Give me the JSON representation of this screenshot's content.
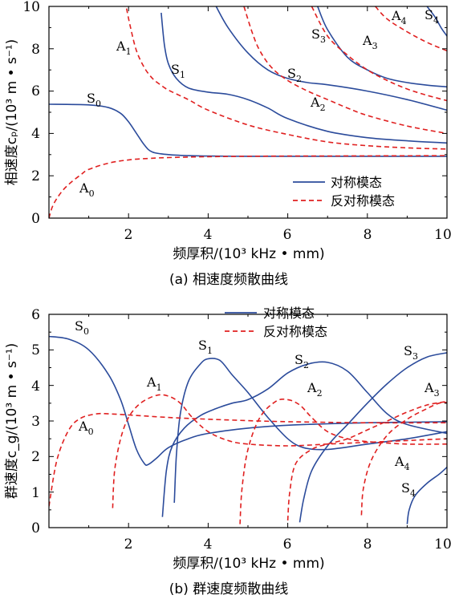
{
  "chart_data": [
    {
      "type": "line",
      "caption": "(a)   相速度频散曲线",
      "xlabel": "频厚积/(10³ kHz • mm)",
      "ylabel": "相速度cₚ/(10³ m • s⁻¹)",
      "xlim": [
        0,
        10
      ],
      "ylim": [
        0,
        10
      ],
      "xticks": [
        "2",
        "4",
        "6",
        "8",
        "10"
      ],
      "yticks": [
        "0",
        "2",
        "4",
        "6",
        "8",
        "10"
      ],
      "legend": {
        "position": "bottom-right",
        "entries": [
          "对称模态",
          "反对称模态"
        ]
      },
      "colors": {
        "symmetric": "#2b4b9b",
        "antisymmetric": "#e02020"
      },
      "series": [
        {
          "name": "S0",
          "group": "symmetric",
          "label": "S0",
          "x": [
            0,
            1,
            1.5,
            1.8,
            2.0,
            2.2,
            2.4,
            2.6,
            3.0,
            3.5,
            4,
            5,
            6,
            7,
            8,
            10
          ],
          "y": [
            5.38,
            5.35,
            5.22,
            4.95,
            4.55,
            4.0,
            3.45,
            3.12,
            3.0,
            2.95,
            2.93,
            2.92,
            2.92,
            2.92,
            2.92,
            2.92
          ]
        },
        {
          "name": "S1",
          "group": "symmetric",
          "label": "S1",
          "x": [
            2.82,
            2.9,
            3.0,
            3.2,
            3.5,
            4,
            4.5,
            5,
            5.5,
            6,
            7,
            8,
            9,
            10
          ],
          "y": [
            9.7,
            8.2,
            7.3,
            6.6,
            6.15,
            5.95,
            5.85,
            5.6,
            5.2,
            4.7,
            4.1,
            3.8,
            3.65,
            3.55
          ]
        },
        {
          "name": "S2",
          "group": "symmetric",
          "label": "S2",
          "x": [
            4.2,
            4.5,
            5,
            5.5,
            6,
            6.5,
            7,
            8,
            9,
            10
          ],
          "y": [
            10,
            9.0,
            7.8,
            7.0,
            6.6,
            6.4,
            6.3,
            6.0,
            5.6,
            5.1
          ]
        },
        {
          "name": "S3",
          "group": "symmetric",
          "label": "S3",
          "x": [
            6.75,
            7,
            7.5,
            8,
            8.5,
            9,
            9.5,
            10
          ],
          "y": [
            10,
            8.9,
            7.6,
            7.0,
            6.6,
            6.4,
            6.28,
            6.2
          ]
        },
        {
          "name": "S4",
          "group": "symmetric",
          "label": "S4",
          "x": [
            9.5,
            9.7,
            9.85,
            10
          ],
          "y": [
            10,
            9.5,
            9.0,
            8.6
          ]
        },
        {
          "name": "A0",
          "group": "antisymmetric",
          "label": "A0",
          "x": [
            0,
            0.1,
            0.3,
            0.5,
            0.8,
            1.0,
            1.5,
            2.0,
            2.5,
            3,
            4,
            5,
            6,
            8,
            10
          ],
          "y": [
            0,
            0.6,
            1.2,
            1.6,
            2.05,
            2.3,
            2.6,
            2.75,
            2.82,
            2.86,
            2.9,
            2.92,
            2.93,
            2.94,
            2.95
          ]
        },
        {
          "name": "A1",
          "group": "antisymmetric",
          "label": "A1",
          "x": [
            1.95,
            2.05,
            2.2,
            2.4,
            2.6,
            2.8,
            3,
            3.5,
            4,
            5,
            6,
            7,
            8,
            9,
            10
          ],
          "y": [
            9.9,
            9.0,
            7.9,
            7.1,
            6.6,
            6.3,
            6.05,
            5.6,
            5.1,
            4.4,
            3.95,
            3.6,
            3.42,
            3.32,
            3.26
          ]
        },
        {
          "name": "A2",
          "group": "antisymmetric",
          "label": "A2",
          "x": [
            4.9,
            5.1,
            5.3,
            5.6,
            6,
            6.5,
            7,
            7.5,
            8,
            9,
            10
          ],
          "y": [
            10,
            8.8,
            7.9,
            7.1,
            6.5,
            6.0,
            5.6,
            5.2,
            4.85,
            4.35,
            4.0
          ]
        },
        {
          "name": "A3",
          "group": "antisymmetric",
          "label": "A3",
          "x": [
            6.6,
            7,
            7.5,
            8,
            8.5,
            9,
            9.5,
            10
          ],
          "y": [
            10,
            8.6,
            7.7,
            7.0,
            6.5,
            6.1,
            5.8,
            5.55
          ]
        },
        {
          "name": "A4",
          "group": "antisymmetric",
          "label": "A4",
          "x": [
            8.2,
            8.5,
            9,
            9.5,
            10
          ],
          "y": [
            10,
            9.4,
            8.8,
            8.3,
            7.9
          ]
        }
      ]
    },
    {
      "type": "line",
      "caption": "(b)   群速度频散曲线",
      "xlabel": "频厚积/(10³ kHz • mm)",
      "ylabel": "群速度c_g/(10³ m • s⁻¹)",
      "xlim": [
        0,
        10
      ],
      "ylim": [
        0,
        6
      ],
      "xticks": [
        "2",
        "4",
        "6",
        "8",
        "10"
      ],
      "yticks": [
        "0",
        "1",
        "2",
        "3",
        "4",
        "5",
        "6"
      ],
      "legend": {
        "position": "top-center",
        "entries": [
          "对称模态",
          "反对称模态"
        ]
      },
      "colors": {
        "symmetric": "#2b4b9b",
        "antisymmetric": "#e02020"
      },
      "series": [
        {
          "name": "S0",
          "group": "symmetric",
          "label": "S0",
          "x": [
            0,
            0.5,
            1.0,
            1.5,
            1.8,
            2.0,
            2.2,
            2.4,
            2.5,
            2.7,
            3.0,
            3.5,
            4,
            5,
            6,
            7,
            8,
            10
          ],
          "y": [
            5.38,
            5.3,
            5.0,
            4.3,
            3.6,
            2.9,
            2.2,
            1.8,
            1.78,
            1.95,
            2.25,
            2.5,
            2.65,
            2.8,
            2.88,
            2.92,
            2.95,
            2.98
          ]
        },
        {
          "name": "S1",
          "group": "symmetric",
          "label": "S1",
          "x": [
            3.15,
            3.2,
            3.3,
            3.5,
            3.8,
            4.0,
            4.3,
            4.6,
            5.0,
            5.5,
            6.0,
            6.4,
            7.0,
            8,
            9,
            10
          ],
          "y": [
            0.7,
            2.0,
            3.2,
            4.1,
            4.6,
            4.75,
            4.7,
            4.3,
            3.8,
            3.1,
            2.5,
            2.25,
            2.2,
            2.35,
            2.5,
            2.7
          ]
        },
        {
          "name": "S2",
          "group": "symmetric",
          "label": "S2",
          "x": [
            2.85,
            2.95,
            3.1,
            3.4,
            3.8,
            4.2,
            4.6,
            5.0,
            5.5,
            6.0,
            6.5,
            7.0,
            7.5,
            8.0,
            8.5,
            9,
            10
          ],
          "y": [
            0.3,
            1.6,
            2.3,
            2.8,
            3.15,
            3.35,
            3.5,
            3.6,
            3.9,
            4.35,
            4.6,
            4.65,
            4.4,
            3.8,
            3.2,
            2.9,
            2.65
          ]
        },
        {
          "name": "S3",
          "group": "symmetric",
          "label": "S3",
          "x": [
            6.3,
            6.4,
            6.6,
            7.0,
            7.5,
            8,
            8.5,
            9,
            9.5,
            10
          ],
          "y": [
            0.15,
            0.8,
            1.6,
            2.3,
            2.9,
            3.5,
            4.05,
            4.5,
            4.8,
            4.92
          ]
        },
        {
          "name": "S4",
          "group": "symmetric",
          "label": "S4",
          "x": [
            9.0,
            9.05,
            9.2,
            9.5,
            9.8,
            10
          ],
          "y": [
            0.1,
            0.5,
            0.9,
            1.25,
            1.5,
            1.7
          ]
        },
        {
          "name": "A0",
          "group": "antisymmetric",
          "label": "A0",
          "x": [
            0,
            0.2,
            0.5,
            0.8,
            1.2,
            1.5,
            2.0,
            3,
            4,
            5,
            6,
            8,
            10
          ],
          "y": [
            0.6,
            1.9,
            2.75,
            3.08,
            3.2,
            3.2,
            3.17,
            3.1,
            3.05,
            3.01,
            2.98,
            2.95,
            2.95
          ]
        },
        {
          "name": "A1",
          "group": "antisymmetric",
          "label": "A1",
          "x": [
            1.6,
            1.65,
            1.8,
            2.0,
            2.3,
            2.7,
            3.0,
            3.3,
            3.6,
            4.0,
            4.5,
            5,
            6,
            7,
            8,
            9,
            10
          ],
          "y": [
            0.55,
            1.6,
            2.5,
            3.1,
            3.5,
            3.72,
            3.7,
            3.5,
            3.1,
            2.7,
            2.45,
            2.35,
            2.3,
            2.35,
            2.4,
            2.45,
            2.5
          ]
        },
        {
          "name": "A2",
          "group": "antisymmetric",
          "label": "A2",
          "x": [
            4.8,
            4.85,
            5.0,
            5.3,
            5.7,
            6.0,
            6.3,
            6.6,
            7.0,
            7.5,
            8,
            9,
            10
          ],
          "y": [
            0.1,
            1.1,
            2.2,
            3.1,
            3.55,
            3.6,
            3.45,
            3.1,
            2.7,
            2.5,
            2.42,
            2.35,
            2.35
          ]
        },
        {
          "name": "A3",
          "group": "antisymmetric",
          "label": "A3",
          "x": [
            6.0,
            6.05,
            6.2,
            6.6,
            7.0,
            7.5,
            8.0,
            8.5,
            9.0,
            9.5,
            10
          ],
          "y": [
            0.2,
            1.0,
            1.8,
            2.2,
            2.35,
            2.5,
            2.75,
            3.0,
            3.25,
            3.45,
            3.55
          ]
        },
        {
          "name": "A4",
          "group": "antisymmetric",
          "label": "A4",
          "x": [
            7.85,
            7.9,
            8.1,
            8.5,
            9.0,
            9.5,
            9.8,
            10
          ],
          "y": [
            0.35,
            1.1,
            1.9,
            2.6,
            3.05,
            3.35,
            3.5,
            3.52
          ]
        }
      ]
    }
  ]
}
